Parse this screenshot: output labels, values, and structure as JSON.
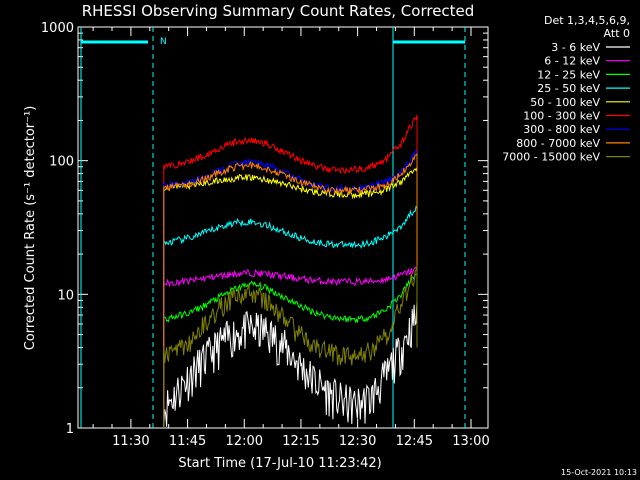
{
  "chart_data": {
    "type": "line",
    "title": "RHESSI Observing Summary Count Rates, Corrected",
    "xlabel": "Start Time (17-Jul-10 11:23:42)",
    "ylabel": "Corrected Count Rate (s⁻¹ detector⁻¹)",
    "yscale": "log",
    "ylim": [
      1,
      1000
    ],
    "xlim_minutes": [
      -7.7,
      100.8
    ],
    "x_ticks": [
      {
        "label": "11:30",
        "minutes": 6.3
      },
      {
        "label": "11:45",
        "minutes": 21.3
      },
      {
        "label": "12:00",
        "minutes": 36.3
      },
      {
        "label": "12:15",
        "minutes": 51.3
      },
      {
        "label": "12:30",
        "minutes": 66.3
      },
      {
        "label": "12:45",
        "minutes": 81.3
      },
      {
        "label": "13:00",
        "minutes": 96.3
      }
    ],
    "y_ticks": [
      {
        "label": "1",
        "value": 1
      },
      {
        "label": "10",
        "value": 10
      },
      {
        "label": "100",
        "value": 100
      },
      {
        "label": "1000",
        "value": 1000
      }
    ],
    "legend_header": [
      "Det 1,3,4,5,6,9,",
      "Att 0"
    ],
    "legend_position": "right",
    "grid": false,
    "series": [
      {
        "name": "3 - 6 keV",
        "color": "#ffffff",
        "x": [
          15,
          18,
          22,
          26,
          30,
          34,
          38,
          42,
          46,
          50,
          54,
          58,
          62,
          66,
          70,
          74,
          78,
          82
        ],
        "y": [
          1.4,
          1.8,
          2.5,
          3.3,
          4.3,
          5.2,
          5.6,
          5.3,
          4.3,
          3.2,
          2.4,
          1.9,
          1.6,
          1.5,
          1.7,
          2.5,
          4.0,
          7.0
        ]
      },
      {
        "name": "6 - 12 keV",
        "color": "#ff00ff",
        "x": [
          15,
          18,
          22,
          26,
          30,
          34,
          38,
          42,
          46,
          50,
          54,
          58,
          62,
          66,
          70,
          74,
          78,
          82
        ],
        "y": [
          12,
          12.3,
          12.6,
          13.2,
          13.8,
          14.3,
          14.5,
          14.2,
          13.7,
          13.2,
          12.8,
          12.5,
          12.4,
          12.4,
          12.5,
          13.0,
          14.0,
          15.5
        ]
      },
      {
        "name": "12 - 25 keV",
        "color": "#00ff00",
        "x": [
          15,
          18,
          22,
          26,
          30,
          34,
          38,
          42,
          46,
          50,
          54,
          58,
          62,
          66,
          70,
          74,
          78,
          82
        ],
        "y": [
          6.5,
          6.8,
          7.3,
          8.3,
          9.6,
          11,
          12,
          11.2,
          9.8,
          8.5,
          7.5,
          6.9,
          6.6,
          6.5,
          6.8,
          7.8,
          10,
          14.5
        ]
      },
      {
        "name": "25 - 50 keV",
        "color": "#00ffff",
        "x": [
          15,
          18,
          22,
          26,
          30,
          34,
          38,
          42,
          46,
          50,
          54,
          58,
          62,
          66,
          70,
          74,
          78,
          82
        ],
        "y": [
          24,
          25,
          26.5,
          29,
          32,
          34.5,
          35,
          33,
          30,
          27,
          25,
          24,
          23.5,
          23.5,
          24.5,
          27,
          33,
          45
        ]
      },
      {
        "name": "50 - 100 keV",
        "color": "#ffff00",
        "x": [
          15,
          18,
          22,
          26,
          30,
          34,
          38,
          42,
          46,
          50,
          54,
          58,
          62,
          66,
          70,
          74,
          78,
          82
        ],
        "y": [
          63,
          64,
          65,
          68,
          71,
          74,
          75,
          72,
          68,
          63,
          59,
          57,
          56,
          56,
          57,
          61,
          70,
          90
        ]
      },
      {
        "name": "100 - 300 keV",
        "color": "#ff0000",
        "x": [
          15,
          18,
          22,
          26,
          30,
          34,
          38,
          42,
          46,
          50,
          54,
          58,
          62,
          66,
          70,
          74,
          78,
          82
        ],
        "y": [
          90,
          93,
          99,
          110,
          125,
          138,
          142,
          135,
          120,
          105,
          93,
          87,
          85,
          86,
          90,
          103,
          135,
          215
        ]
      },
      {
        "name": "300 - 800 keV",
        "color": "#0000ff",
        "x": [
          15,
          18,
          22,
          26,
          30,
          34,
          38,
          42,
          46,
          50,
          54,
          58,
          62,
          66,
          70,
          74,
          78,
          82
        ],
        "y": [
          65,
          66,
          69,
          76,
          85,
          95,
          98,
          93,
          84,
          74,
          67,
          63,
          62,
          62,
          64,
          70,
          83,
          115
        ]
      },
      {
        "name": "800 - 7000 keV",
        "color": "#ff8000",
        "x": [
          15,
          18,
          22,
          26,
          30,
          34,
          38,
          42,
          46,
          50,
          54,
          58,
          62,
          66,
          70,
          74,
          78,
          82
        ],
        "y": [
          63,
          64,
          67,
          73,
          82,
          90,
          93,
          88,
          80,
          71,
          65,
          61,
          60,
          60,
          62,
          67,
          80,
          110
        ]
      },
      {
        "name": "7000 - 15000 keV",
        "color": "#808000",
        "x": [
          15,
          18,
          22,
          26,
          30,
          34,
          38,
          42,
          46,
          50,
          54,
          58,
          62,
          66,
          70,
          74,
          78,
          82
        ],
        "y": [
          3.5,
          3.8,
          4.5,
          6.0,
          8.0,
          9.8,
          10.3,
          9.0,
          7.0,
          5.3,
          4.3,
          3.7,
          3.5,
          3.5,
          3.8,
          5.0,
          8.5,
          15
        ]
      }
    ],
    "annotations": [
      {
        "label": "N",
        "color": "#00ffff"
      }
    ]
  },
  "footer_date": "15-Oct-2021 10:13"
}
